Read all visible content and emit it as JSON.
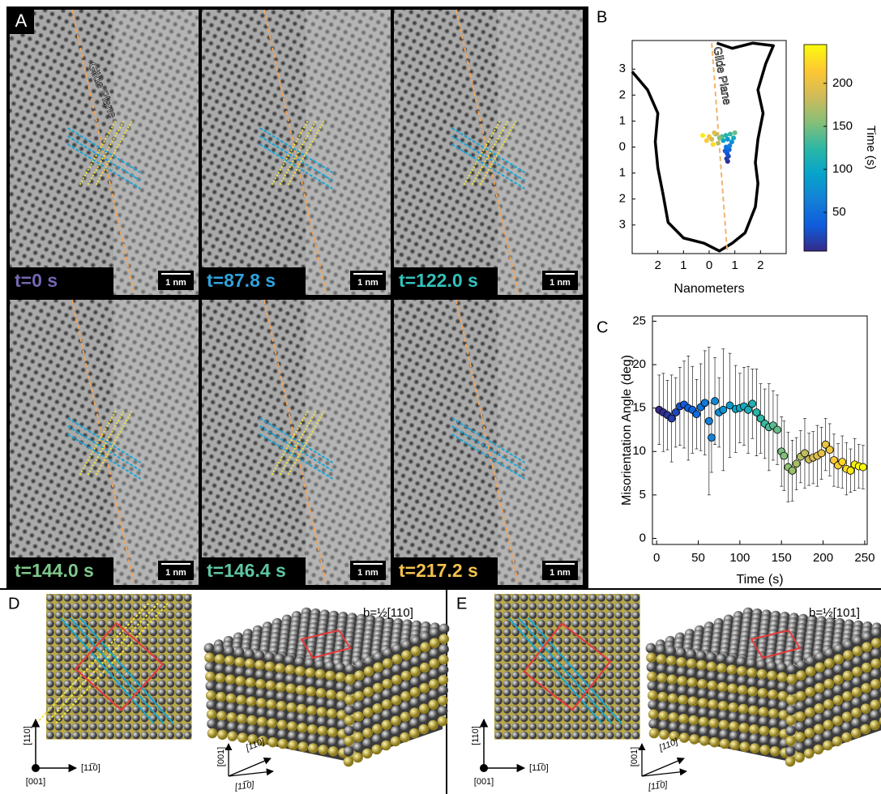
{
  "panel_a": {
    "label": "A",
    "annotation": "Glide Plane",
    "scale_bar": "1 nm",
    "frames": [
      {
        "time": "t=0 s",
        "color": "#7466b0"
      },
      {
        "time": "t=87.8 s",
        "color": "#2fa3dd"
      },
      {
        "time": "t=122.0 s",
        "color": "#32c1bb"
      },
      {
        "time": "t=144.0 s",
        "color": "#7dc78c"
      },
      {
        "time": "t=146.4 s",
        "color": "#5ec6a2"
      },
      {
        "time": "t=217.2 s",
        "color": "#f3c14c"
      }
    ]
  },
  "chart_data": [
    {
      "type": "scatter",
      "label": "B",
      "xlabel": "Nanometers",
      "annotation": "Glide Plane",
      "xlim": [
        -3,
        3
      ],
      "ylim": [
        -4.1,
        4.1
      ],
      "xticks": [
        {
          "value": -2,
          "label": "2"
        },
        {
          "value": -1,
          "label": "1"
        },
        0,
        1,
        2
      ],
      "yticks": [
        {
          "value": -3,
          "label": "3"
        },
        {
          "value": -2,
          "label": "2"
        },
        {
          "value": -1,
          "label": "1"
        },
        0,
        1,
        2,
        3
      ],
      "outline": {
        "color": "#000000",
        "x": [
          -3.0,
          -2.4,
          -2.0,
          -2.1,
          -2.0,
          -1.8,
          -1.6,
          -1.0,
          -0.2,
          0.4,
          0.9,
          1.4,
          1.8,
          1.9,
          1.8,
          1.9,
          2.1,
          1.9,
          2.2,
          2.5,
          1.7,
          0.9,
          0.3
        ],
        "y": [
          2.9,
          2.2,
          1.3,
          0.2,
          -0.8,
          -1.8,
          -2.9,
          -3.5,
          -3.7,
          -4.0,
          -3.7,
          -3.3,
          -2.3,
          -1.4,
          -0.6,
          0.3,
          1.3,
          2.2,
          3.2,
          3.9,
          4.0,
          3.8,
          4.0
        ]
      },
      "glide_plane": {
        "color": "#f2b36b",
        "x": [
          0.1,
          0.7
        ],
        "y": [
          4.0,
          -4.0
        ]
      },
      "points": {
        "x": [
          0.72,
          0.68,
          0.75,
          0.7,
          0.62,
          0.78,
          0.66,
          0.8,
          0.88,
          0.72,
          0.55,
          0.95,
          0.65,
          0.82,
          0.5,
          1.0,
          0.4,
          0.25,
          0.35,
          0.1,
          0.2,
          0.0,
          -0.1,
          0.15,
          -0.25
        ],
        "y": [
          -0.55,
          -0.45,
          -0.35,
          -0.25,
          -0.15,
          -0.1,
          0.0,
          0.05,
          0.2,
          0.3,
          0.25,
          0.35,
          0.45,
          0.5,
          0.4,
          0.55,
          0.35,
          0.5,
          0.15,
          0.3,
          0.55,
          0.4,
          0.25,
          0.1,
          0.45
        ],
        "time": [
          8,
          15,
          22,
          30,
          38,
          45,
          55,
          65,
          75,
          85,
          95,
          105,
          115,
          125,
          135,
          145,
          155,
          165,
          175,
          185,
          195,
          205,
          215,
          225,
          235
        ]
      },
      "colorbar": {
        "label": "Time (s)",
        "lim": [
          5,
          245
        ],
        "ticks": [
          50,
          100,
          150,
          200
        ]
      },
      "colormap": [
        "#352a87",
        "#0f5cdd",
        "#1481d6",
        "#06a4ca",
        "#2eb7a4",
        "#87bf77",
        "#d1bb59",
        "#fec832",
        "#f9fb0e"
      ]
    },
    {
      "type": "errorbar",
      "label": "C",
      "xlabel": "Time (s)",
      "ylabel": "Misorientation Angle (deg)",
      "xlim": [
        -5,
        253
      ],
      "ylim": [
        -0.7,
        25.6
      ],
      "xticks": [
        0,
        50,
        100,
        150,
        200,
        250
      ],
      "yticks": [
        0,
        5,
        10,
        15,
        20,
        25
      ],
      "error_color": "#000000",
      "x": [
        3,
        8,
        13,
        18,
        23,
        28,
        33,
        38,
        43,
        48,
        53,
        58,
        63,
        66,
        70,
        75,
        80,
        88,
        95,
        100,
        105,
        110,
        115,
        120,
        125,
        130,
        135,
        140,
        145,
        150,
        153,
        158,
        163,
        168,
        173,
        178,
        183,
        188,
        193,
        198,
        203,
        208,
        213,
        218,
        223,
        228,
        233,
        238,
        243,
        248
      ],
      "values": [
        14.8,
        14.5,
        14.2,
        13.8,
        14.5,
        15.2,
        15.4,
        15.0,
        14.8,
        14.3,
        15.1,
        15.6,
        13.5,
        11.6,
        15.8,
        14.5,
        14.8,
        15.3,
        14.9,
        15.0,
        15.2,
        14.8,
        15.5,
        14.5,
        13.8,
        13.2,
        12.8,
        13.0,
        12.5,
        10.0,
        9.5,
        8.2,
        7.8,
        8.6,
        9.4,
        9.8,
        9.1,
        9.3,
        9.5,
        9.8,
        10.8,
        10.2,
        9.0,
        8.4,
        8.8,
        8.0,
        7.8,
        8.5,
        8.3,
        8.2
      ],
      "errors": [
        4,
        4.5,
        4,
        5,
        4,
        4.5,
        5,
        6,
        5,
        4,
        5,
        6,
        8.5,
        4,
        5,
        4,
        7,
        6,
        5,
        4,
        4.5,
        5,
        4,
        5,
        4,
        4,
        5,
        4,
        4,
        4,
        4,
        4,
        3.5,
        3,
        3,
        4,
        3,
        3,
        3.5,
        3,
        3,
        3,
        3,
        2.5,
        3,
        3,
        2.5,
        3,
        2.5,
        2.5
      ]
    }
  ],
  "panel_d": {
    "label": "D",
    "burgers": "b=½[110]",
    "axes_2d": {
      "up": "[110]",
      "right": "[11̅0]",
      "origin": "[001]"
    },
    "axes_3d": {
      "up": "[001]",
      "diag": "[110]",
      "right": "[11̅0]"
    }
  },
  "panel_e": {
    "label": "E",
    "burgers": "b=½[101]",
    "axes_2d": {
      "up": "[110]",
      "right": "[11̅0]",
      "origin": "[001]"
    },
    "axes_3d": {
      "up": "[001]",
      "diag": "[110]",
      "right": "[11̅0]"
    }
  }
}
